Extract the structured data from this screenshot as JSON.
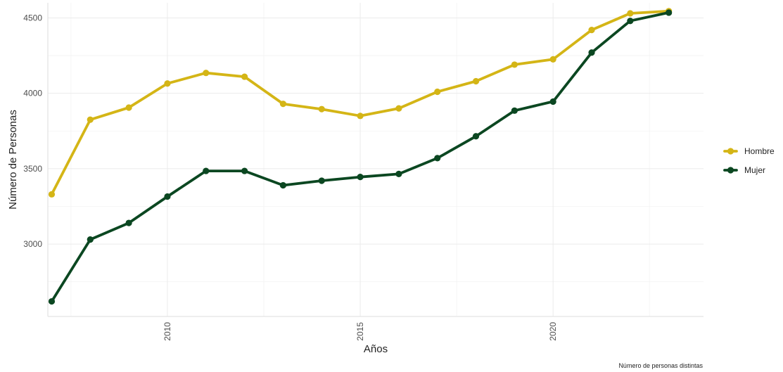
{
  "chart_data": {
    "type": "line",
    "title": "",
    "xlabel": "Años",
    "ylabel": "Número de Personas",
    "caption": "Número de personas distintas",
    "x": [
      2007,
      2008,
      2009,
      2010,
      2011,
      2012,
      2013,
      2014,
      2015,
      2016,
      2017,
      2018,
      2019,
      2020,
      2021,
      2022,
      2023
    ],
    "series": [
      {
        "name": "Hombre",
        "color": "#d4b516",
        "values": [
          3330,
          3825,
          3905,
          4065,
          4135,
          4110,
          3930,
          3895,
          3850,
          3900,
          4010,
          4080,
          4190,
          4225,
          4420,
          4530,
          4545
        ]
      },
      {
        "name": "Mujer",
        "color": "#0b4721",
        "values": [
          2620,
          3030,
          3140,
          3315,
          3485,
          3485,
          3390,
          3420,
          3445,
          3465,
          3570,
          3715,
          3885,
          3945,
          4270,
          4480,
          4535
        ]
      }
    ],
    "xlim": [
      2006.9,
      2023.9
    ],
    "ylim": [
      2520,
      4600
    ],
    "x_ticks": [
      "2010",
      "2015",
      "2020"
    ],
    "y_ticks": [
      "3000",
      "3500",
      "4000",
      "4500"
    ],
    "legend_position": "right",
    "grid": true
  }
}
